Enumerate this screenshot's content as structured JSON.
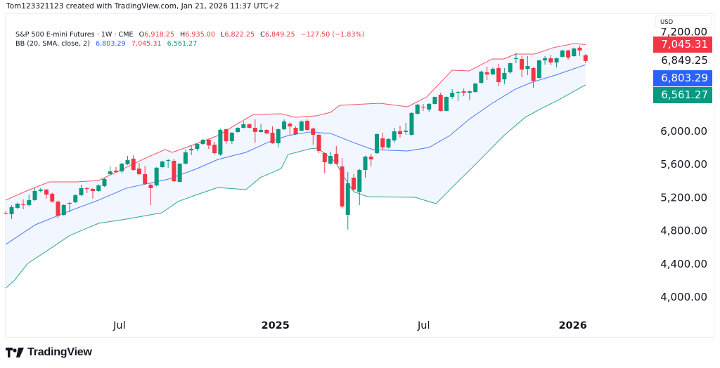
{
  "credit": "Tom123321123 created with TradingView.com, Jan 21, 2026 11:37 UTC+2",
  "legend": {
    "symbol": "S&P 500 E-mini Futures · 1W · CME",
    "o_label": "O",
    "o": "6,918.25",
    "h_label": "H",
    "h": "6,935.00",
    "l_label": "L",
    "l": "6,822.25",
    "c_label": "C",
    "c": "6,849.25",
    "change": "−127.50 (−1.83%)",
    "bb_label": "BB (20, SMA, close, 2)",
    "bb_basis": "6,803.29",
    "bb_upper": "7,045.31",
    "bb_lower": "6,561.27"
  },
  "currency": "USD",
  "badges": {
    "upper": "7,045.31",
    "last": "6,849.25",
    "basis": "6,803.29",
    "lower": "6,561.27"
  },
  "brand": "TradingView",
  "colors": {
    "up": "#089981",
    "down": "#f23645",
    "basis": "#2962ff",
    "upper": "#f23645",
    "lower": "#089981",
    "band_fill": "#f2f6ff"
  },
  "chart_data": {
    "type": "candlestick",
    "timeframe": "1W",
    "indicator": "Bollinger Bands (20, SMA, close, 2)",
    "ylim": [
      3800,
      7300
    ],
    "y_scale": "linear",
    "y_ticks": [
      {
        "value": 7200,
        "label": "7,200.00"
      },
      {
        "value": 6000,
        "label": "6,000.00"
      },
      {
        "value": 5600,
        "label": "5,600.00"
      },
      {
        "value": 5200,
        "label": "5,200.00"
      },
      {
        "value": 4800,
        "label": "4,800.00"
      },
      {
        "value": 4400,
        "label": "4,400.00"
      },
      {
        "value": 4000,
        "label": "4,000.00"
      }
    ],
    "x_ticks": [
      {
        "index": 19.6,
        "label": "Jul",
        "bold": false
      },
      {
        "index": 46.5,
        "label": "2025",
        "bold": true
      },
      {
        "index": 72.1,
        "label": "Jul",
        "bold": false
      },
      {
        "index": 97.8,
        "label": "2026",
        "bold": true
      }
    ],
    "grid": false,
    "ohlc_fields": [
      "open",
      "high",
      "low",
      "close"
    ],
    "candles": [
      [
        5017,
        5035,
        4995,
        5009
      ],
      [
        5000,
        5110,
        4941,
        5085
      ],
      [
        5076,
        5140,
        5060,
        5127
      ],
      [
        5119,
        5178,
        5059,
        5110
      ],
      [
        5110,
        5237,
        5095,
        5170
      ],
      [
        5170,
        5314,
        5160,
        5280
      ],
      [
        5280,
        5315,
        5265,
        5297
      ],
      [
        5297,
        5305,
        5187,
        5237
      ],
      [
        5246,
        5260,
        5140,
        5153
      ],
      [
        5153,
        5165,
        4949,
        4983
      ],
      [
        4992,
        5120,
        4980,
        5110
      ],
      [
        5127,
        5150,
        5026,
        5136
      ],
      [
        5144,
        5240,
        5135,
        5229
      ],
      [
        5229,
        5356,
        5220,
        5314
      ],
      [
        5314,
        5325,
        5254,
        5305
      ],
      [
        5305,
        5315,
        5187,
        5280
      ],
      [
        5280,
        5360,
        5270,
        5348
      ],
      [
        5339,
        5435,
        5330,
        5424
      ],
      [
        5483,
        5576,
        5475,
        5517
      ],
      [
        5526,
        5568,
        5500,
        5509
      ],
      [
        5517,
        5620,
        5492,
        5610
      ],
      [
        5602,
        5703,
        5595,
        5653
      ],
      [
        5670,
        5712,
        5525,
        5534
      ],
      [
        5551,
        5619,
        5470,
        5483
      ],
      [
        5483,
        5585,
        5355,
        5365
      ],
      [
        5356,
        5370,
        5110,
        5314
      ],
      [
        5348,
        5570,
        5335,
        5560
      ],
      [
        5568,
        5645,
        5555,
        5636
      ],
      [
        5644,
        5665,
        5560,
        5653
      ],
      [
        5644,
        5670,
        5390,
        5398
      ],
      [
        5390,
        5615,
        5385,
        5610
      ],
      [
        5610,
        5780,
        5600,
        5746
      ],
      [
        5771,
        5830,
        5712,
        5788
      ],
      [
        5788,
        5855,
        5763,
        5847
      ],
      [
        5847,
        5910,
        5840,
        5898
      ],
      [
        5898,
        5905,
        5788,
        5830
      ],
      [
        5839,
        5873,
        5720,
        5737
      ],
      [
        5720,
        6034,
        5705,
        6017
      ],
      [
        6025,
        6035,
        5847,
        5881
      ],
      [
        5881,
        5990,
        5847,
        5983
      ],
      [
        5992,
        6050,
        5980,
        6042
      ],
      [
        6042,
        6119,
        6035,
        6085
      ],
      [
        6085,
        6095,
        6035,
        6042
      ],
      [
        6042,
        6144,
        5864,
        5992
      ],
      [
        5992,
        6093,
        5985,
        6017
      ],
      [
        6017,
        6025,
        5965,
        5975
      ],
      [
        5983,
        6059,
        5850,
        5856
      ],
      [
        5856,
        6035,
        5805,
        6025
      ],
      [
        6025,
        6144,
        6015,
        6119
      ],
      [
        6093,
        6110,
        5949,
        6059
      ],
      [
        6042,
        6060,
        5955,
        5966
      ],
      [
        6008,
        6130,
        6000,
        6119
      ],
      [
        6127,
        6144,
        6005,
        6017
      ],
      [
        6034,
        6045,
        5839,
        5958
      ],
      [
        5958,
        5970,
        5737,
        5763
      ],
      [
        5737,
        5745,
        5492,
        5627
      ],
      [
        5610,
        5754,
        5600,
        5703
      ],
      [
        5729,
        5822,
        5600,
        5610
      ],
      [
        5576,
        5678,
        5068,
        5093
      ],
      [
        4992,
        5509,
        4814,
        5373
      ],
      [
        5441,
        5483,
        5290,
        5297
      ],
      [
        5271,
        5545,
        5110,
        5534
      ],
      [
        5534,
        5705,
        5441,
        5695
      ],
      [
        5695,
        5729,
        5576,
        5661
      ],
      [
        5737,
        5975,
        5729,
        5966
      ],
      [
        5915,
        5983,
        5771,
        5805
      ],
      [
        5805,
        5915,
        5795,
        5907
      ],
      [
        5890,
        6042,
        5864,
        6000
      ],
      [
        6000,
        6068,
        5924,
        5966
      ],
      [
        5992,
        6102,
        5958,
        6008
      ],
      [
        5958,
        6230,
        5950,
        6220
      ],
      [
        6212,
        6330,
        6205,
        6322
      ],
      [
        6297,
        6331,
        6246,
        6288
      ],
      [
        6263,
        6340,
        6237,
        6331
      ],
      [
        6331,
        6420,
        6325,
        6415
      ],
      [
        6441,
        6466,
        6240,
        6246
      ],
      [
        6246,
        6425,
        6240,
        6415
      ],
      [
        6415,
        6509,
        6390,
        6466
      ],
      [
        6466,
        6490,
        6364,
        6475
      ],
      [
        6483,
        6518,
        6424,
        6466
      ],
      [
        6466,
        6495,
        6373,
        6483
      ],
      [
        6475,
        6585,
        6465,
        6576
      ],
      [
        6585,
        6730,
        6575,
        6721
      ],
      [
        6712,
        6780,
        6619,
        6687
      ],
      [
        6687,
        6770,
        6680,
        6754
      ],
      [
        6763,
        6814,
        6543,
        6593
      ],
      [
        6627,
        6763,
        6568,
        6704
      ],
      [
        6712,
        6830,
        6695,
        6822
      ],
      [
        6873,
        6949,
        6822,
        6882
      ],
      [
        6873,
        6907,
        6653,
        6746
      ],
      [
        6754,
        6907,
        6678,
        6788
      ],
      [
        6763,
        6775,
        6526,
        6610
      ],
      [
        6644,
        6865,
        6635,
        6856
      ],
      [
        6856,
        6907,
        6805,
        6882
      ],
      [
        6882,
        6924,
        6797,
        6831
      ],
      [
        6831,
        6890,
        6771,
        6882
      ],
      [
        6899,
        6985,
        6890,
        6975
      ],
      [
        6975,
        6985,
        6865,
        6890
      ],
      [
        6907,
        7010,
        6900,
        6999
      ],
      [
        7009,
        7034,
        6907,
        6976.75
      ],
      [
        6918.25,
        6935,
        6822.25,
        6849.25
      ]
    ],
    "bb_upper": [
      [
        0,
        5170
      ],
      [
        3.8,
        5288
      ],
      [
        7.5,
        5390
      ],
      [
        12.3,
        5390
      ],
      [
        16,
        5407
      ],
      [
        19.6,
        5526
      ],
      [
        24.4,
        5687
      ],
      [
        27.5,
        5780
      ],
      [
        28.7,
        5746
      ],
      [
        31.1,
        5805
      ],
      [
        33,
        5856
      ],
      [
        36.6,
        5949
      ],
      [
        40.2,
        6102
      ],
      [
        42.7,
        6203
      ],
      [
        47.5,
        6212
      ],
      [
        49.9,
        6170
      ],
      [
        53.6,
        6187
      ],
      [
        56,
        6229
      ],
      [
        57.6,
        6314
      ],
      [
        64.5,
        6339
      ],
      [
        69.3,
        6297
      ],
      [
        72.6,
        6415
      ],
      [
        77,
        6737
      ],
      [
        79.9,
        6729
      ],
      [
        81.8,
        6797
      ],
      [
        83.9,
        6873
      ],
      [
        85.9,
        6873
      ],
      [
        87.9,
        6932
      ],
      [
        91.2,
        6932
      ],
      [
        94.4,
        7009
      ],
      [
        98.1,
        7060
      ],
      [
        100,
        7045.31
      ]
    ],
    "bb_basis": [
      [
        0,
        4636
      ],
      [
        5.1,
        4873
      ],
      [
        11.1,
        5042
      ],
      [
        16,
        5170
      ],
      [
        20.8,
        5314
      ],
      [
        28.1,
        5424
      ],
      [
        33,
        5551
      ],
      [
        36.6,
        5661
      ],
      [
        41.4,
        5746
      ],
      [
        45.1,
        5864
      ],
      [
        48.7,
        5949
      ],
      [
        52.4,
        5992
      ],
      [
        56,
        5975
      ],
      [
        60,
        5864
      ],
      [
        63.3,
        5780
      ],
      [
        69.3,
        5763
      ],
      [
        73,
        5805
      ],
      [
        76.6,
        5949
      ],
      [
        79.9,
        6144
      ],
      [
        83.9,
        6339
      ],
      [
        87.9,
        6509
      ],
      [
        90.8,
        6593
      ],
      [
        94.8,
        6678
      ],
      [
        100,
        6803.29
      ]
    ],
    "bb_lower": [
      [
        0,
        4110
      ],
      [
        1.4,
        4195
      ],
      [
        3.8,
        4407
      ],
      [
        7.5,
        4577
      ],
      [
        11.1,
        4746
      ],
      [
        16,
        4890
      ],
      [
        20.8,
        4941
      ],
      [
        26.9,
        5017
      ],
      [
        29.7,
        5153
      ],
      [
        33,
        5237
      ],
      [
        36.6,
        5322
      ],
      [
        41.4,
        5297
      ],
      [
        43.9,
        5441
      ],
      [
        47.5,
        5551
      ],
      [
        48.7,
        5720
      ],
      [
        52.4,
        5788
      ],
      [
        53.6,
        5797
      ],
      [
        54.4,
        5763
      ],
      [
        56.8,
        5636
      ],
      [
        58.4,
        5441
      ],
      [
        60,
        5271
      ],
      [
        62.4,
        5212
      ],
      [
        70.6,
        5203
      ],
      [
        74.2,
        5127
      ],
      [
        77.8,
        5381
      ],
      [
        81.5,
        5636
      ],
      [
        85.9,
        5949
      ],
      [
        89.6,
        6170
      ],
      [
        92.7,
        6288
      ],
      [
        95.2,
        6373
      ],
      [
        100,
        6561.27
      ]
    ]
  }
}
